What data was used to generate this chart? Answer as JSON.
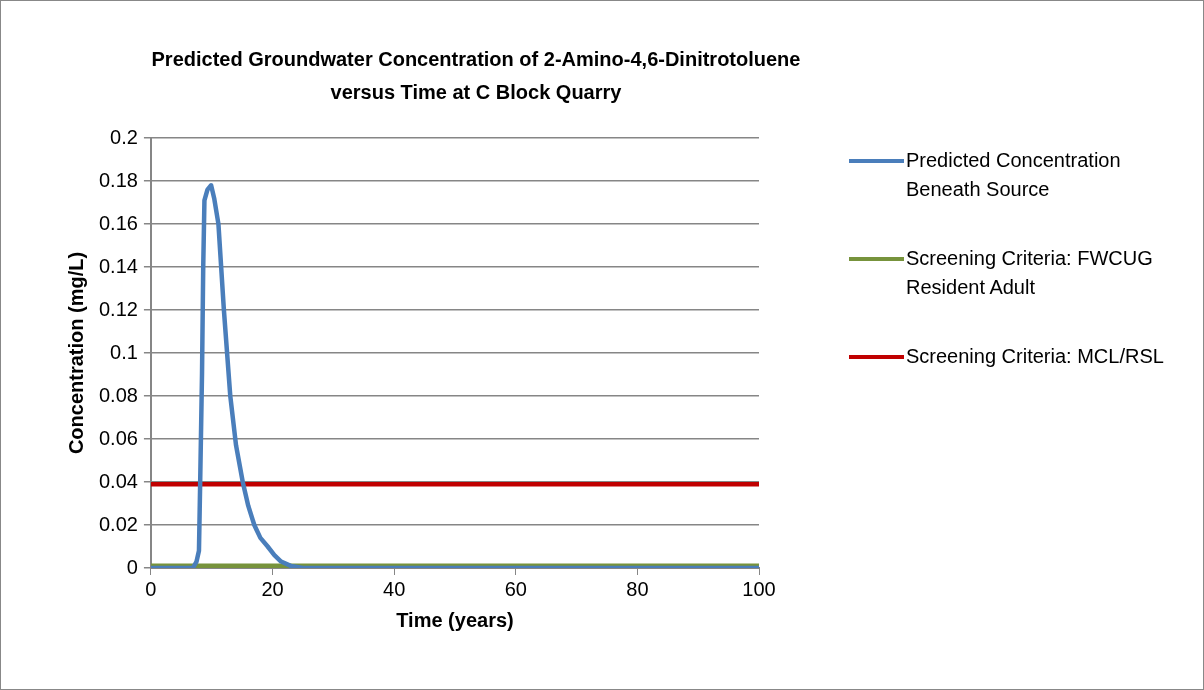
{
  "chart_data": {
    "type": "line",
    "title": "Predicted Groundwater Concentration of 2-Amino-4,6-Dinitrotoluene versus Time at C Block Quarry",
    "xlabel": "Time (years)",
    "ylabel": "Concentration (mg/L)",
    "xlim": [
      0,
      100
    ],
    "xticks": [
      0,
      20,
      40,
      60,
      80,
      100
    ],
    "ylim": [
      0,
      0.2
    ],
    "yticks": [
      0,
      0.02,
      0.04,
      0.06,
      0.08,
      0.1,
      0.12,
      0.14,
      0.16,
      0.18,
      0.2
    ],
    "grid": "y",
    "legend": "right",
    "marker": "none",
    "line_style": "solid",
    "series": [
      {
        "name": "Predicted Concentration Beneath Source",
        "color": "#4a7ebb",
        "x": [
          0,
          6.9,
          7.5,
          7.9,
          8.1,
          8.4,
          8.6,
          8.8,
          9.3,
          9.9,
          10.4,
          11.1,
          12.0,
          13.05,
          14.0,
          15.1,
          16.0,
          17.0,
          18.0,
          19.2,
          20.3,
          21.4,
          23.0,
          25.0,
          30.0,
          40.0,
          60.0,
          80.0,
          100.0
        ],
        "values": [
          0,
          0,
          0.003,
          0.008,
          0.04,
          0.09,
          0.14,
          0.171,
          0.176,
          0.178,
          0.172,
          0.16,
          0.12,
          0.08,
          0.057,
          0.04,
          0.029,
          0.02,
          0.014,
          0.01,
          0.006,
          0.003,
          0.001,
          0,
          0,
          0,
          0,
          0,
          0
        ]
      },
      {
        "name": "Screening Criteria: FWCUG Resident Adult",
        "color": "#77933c",
        "x": [
          0,
          100
        ],
        "values": [
          0.001,
          0.001
        ]
      },
      {
        "name": "Screening Criteria: MCL/RSL",
        "color": "#c00000",
        "x": [
          0,
          100
        ],
        "values": [
          0.039,
          0.039
        ]
      }
    ]
  }
}
